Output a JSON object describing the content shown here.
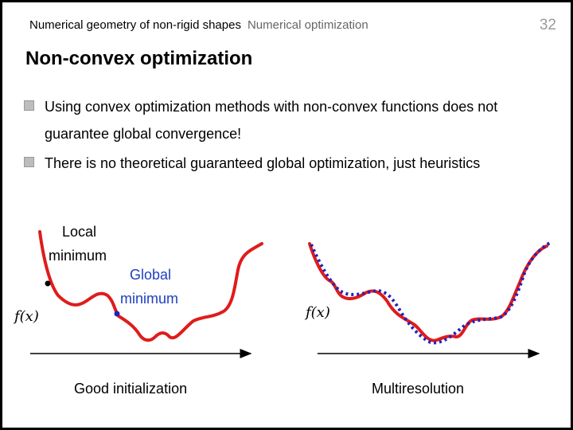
{
  "header": {
    "course": "Numerical geometry of non-rigid shapes",
    "section": "Numerical optimization",
    "page": "32"
  },
  "title": "Non-convex optimization",
  "bullets": [
    "Using convex optimization methods with non-convex functions does not guarantee global convergence!",
    "There is no theoretical guaranteed global optimization, just heuristics"
  ],
  "figures": {
    "left": {
      "axis_label": "f(x)",
      "local_label_line1": "Local",
      "local_label_line2": "minimum",
      "global_label_line1": "Global",
      "global_label_line2": "minimum",
      "caption": "Good initialization"
    },
    "right": {
      "axis_label": "f(x)",
      "caption": "Multiresolution"
    }
  },
  "colors": {
    "curve": "#e01b1b",
    "dotted": "#2323b8",
    "global_label": "#1e3fbf",
    "header_sub": "#666666",
    "page_number": "#999999",
    "bullet_marker": "#bdbdbd"
  }
}
